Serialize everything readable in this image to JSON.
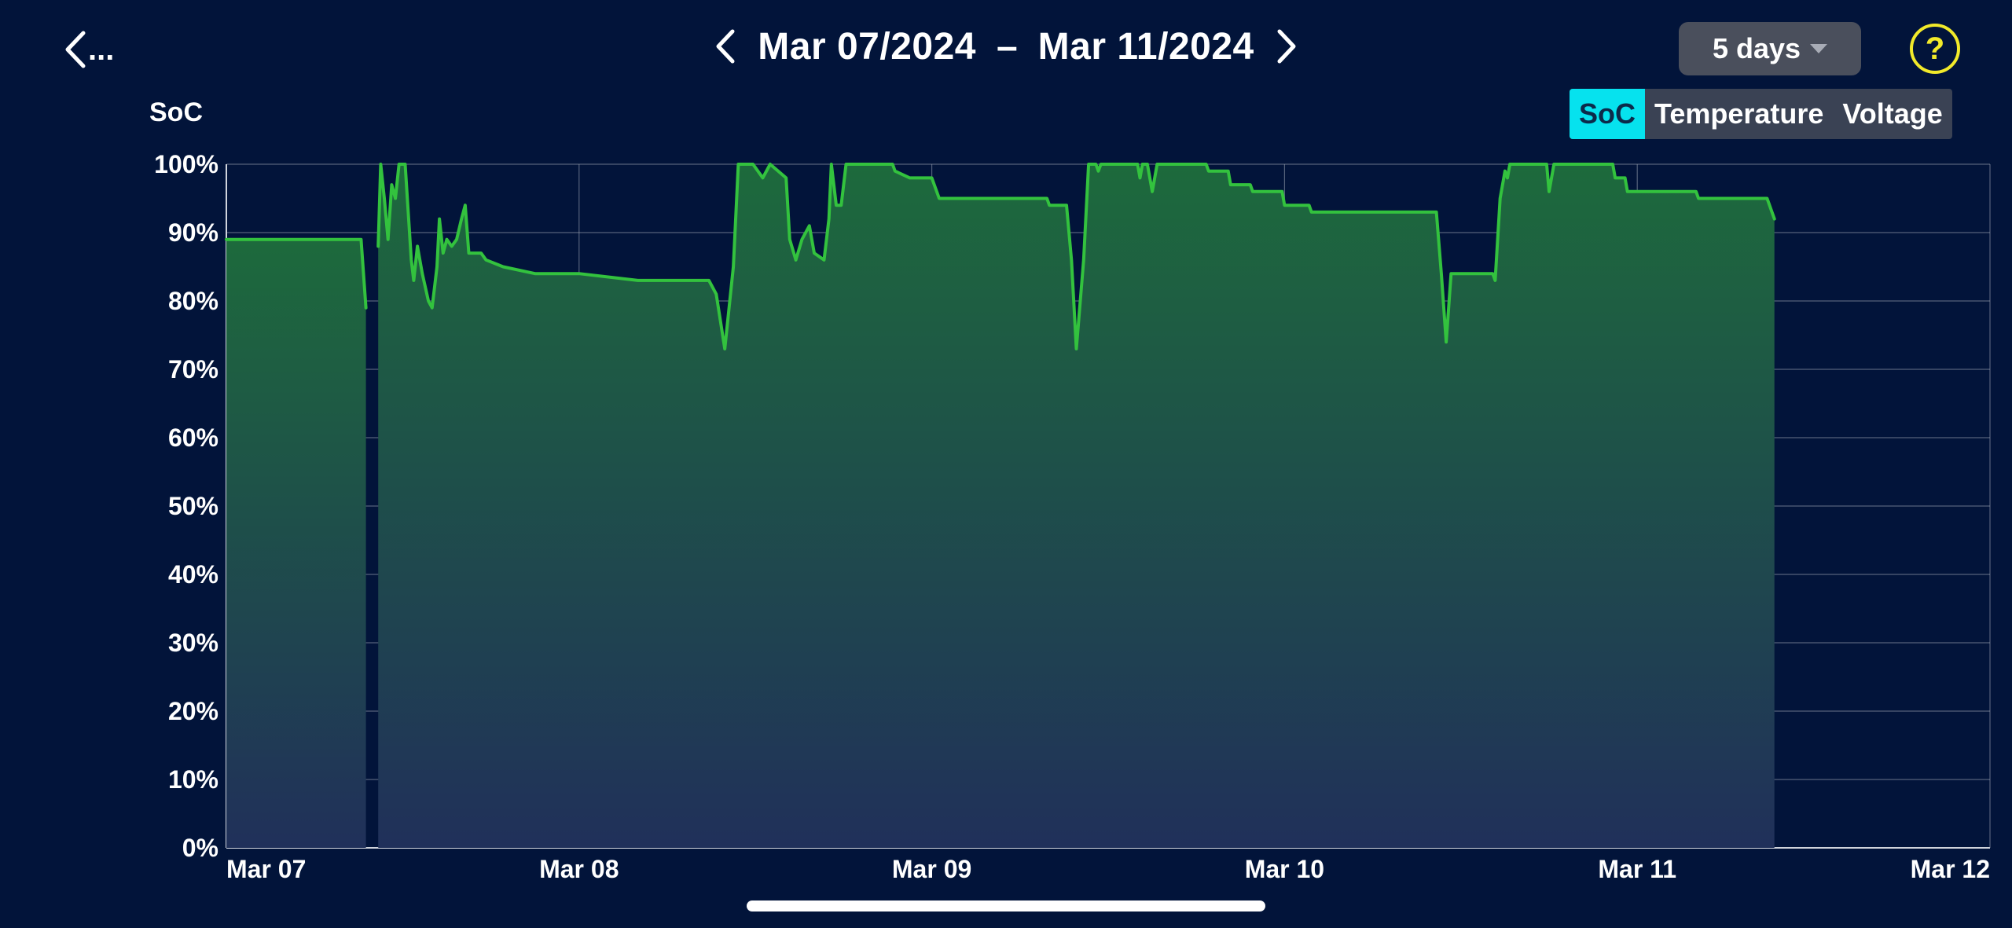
{
  "header": {
    "back_label": "...",
    "date_start": "Mar 07/2024",
    "date_separator": "–",
    "date_end": "Mar 11/2024",
    "range_selected": "5 days",
    "help_label": "?"
  },
  "metric_tabs": [
    {
      "label": "SoC",
      "active": true
    },
    {
      "label": "Temperature",
      "active": false
    },
    {
      "label": "Voltage",
      "active": false
    }
  ],
  "colors": {
    "background": "#02143a",
    "line": "#33c23e",
    "selected_tab": "#06e2ee",
    "help_accent": "#f2ea2a"
  },
  "chart_data": {
    "type": "area",
    "ylabel": "SoC",
    "ylim": [
      0,
      100
    ],
    "yticks": [
      "0%",
      "10%",
      "20%",
      "30%",
      "40%",
      "50%",
      "60%",
      "70%",
      "80%",
      "90%",
      "100%"
    ],
    "xticks": [
      "Mar 07",
      "Mar 08",
      "Mar 09",
      "Mar 10",
      "Mar 11",
      "Mar 12"
    ],
    "xlim": [
      "2024-03-07 00:00",
      "2024-03-12 00:00"
    ],
    "grid": true,
    "series": [
      {
        "segments": [
          [
            [
              "2024-03-07 00:00",
              89
            ],
            [
              "2024-03-07 09:10",
              89
            ],
            [
              "2024-03-07 09:30",
              79
            ]
          ],
          [
            [
              "2024-03-07 10:20",
              88
            ],
            [
              "2024-03-07 10:30",
              100
            ],
            [
              "2024-03-07 10:45",
              95
            ],
            [
              "2024-03-07 11:00",
              89
            ],
            [
              "2024-03-07 11:15",
              97
            ],
            [
              "2024-03-07 11:30",
              95
            ],
            [
              "2024-03-07 11:45",
              100
            ],
            [
              "2024-03-07 12:10",
              100
            ],
            [
              "2024-03-07 12:35",
              86
            ],
            [
              "2024-03-07 12:45",
              83
            ],
            [
              "2024-03-07 13:00",
              88
            ],
            [
              "2024-03-07 13:20",
              84
            ],
            [
              "2024-03-07 13:45",
              80
            ],
            [
              "2024-03-07 14:00",
              79
            ],
            [
              "2024-03-07 14:20",
              85
            ],
            [
              "2024-03-07 14:30",
              92
            ],
            [
              "2024-03-07 14:45",
              87
            ],
            [
              "2024-03-07 15:00",
              89
            ],
            [
              "2024-03-07 15:20",
              88
            ],
            [
              "2024-03-07 15:40",
              89
            ],
            [
              "2024-03-07 16:00",
              92
            ],
            [
              "2024-03-07 16:15",
              94
            ],
            [
              "2024-03-07 16:30",
              87
            ],
            [
              "2024-03-07 17:20",
              87
            ],
            [
              "2024-03-07 17:40",
              86
            ],
            [
              "2024-03-07 18:50",
              85
            ],
            [
              "2024-03-07 21:00",
              84
            ],
            [
              "2024-03-08 00:00",
              84
            ],
            [
              "2024-03-08 04:00",
              83
            ],
            [
              "2024-03-08 08:50",
              83
            ],
            [
              "2024-03-08 09:20",
              81
            ],
            [
              "2024-03-08 09:55",
              73
            ],
            [
              "2024-03-08 10:30",
              85
            ],
            [
              "2024-03-08 10:50",
              100
            ],
            [
              "2024-03-08 11:50",
              100
            ],
            [
              "2024-03-08 12:30",
              98
            ],
            [
              "2024-03-08 13:00",
              100
            ],
            [
              "2024-03-08 14:05",
              98
            ],
            [
              "2024-03-08 14:20",
              89
            ],
            [
              "2024-03-08 14:45",
              86
            ],
            [
              "2024-03-08 15:10",
              89
            ],
            [
              "2024-03-08 15:40",
              91
            ],
            [
              "2024-03-08 16:00",
              87
            ],
            [
              "2024-03-08 16:40",
              86
            ],
            [
              "2024-03-08 17:00",
              92
            ],
            [
              "2024-03-08 17:10",
              100
            ],
            [
              "2024-03-08 17:30",
              94
            ],
            [
              "2024-03-08 17:50",
              94
            ],
            [
              "2024-03-08 18:10",
              100
            ],
            [
              "2024-03-08 21:20",
              100
            ],
            [
              "2024-03-08 21:30",
              99
            ],
            [
              "2024-03-08 22:30",
              98
            ],
            [
              "2024-03-09 00:00",
              98
            ],
            [
              "2024-03-09 00:30",
              95
            ],
            [
              "2024-03-09 07:50",
              95
            ],
            [
              "2024-03-09 08:00",
              94
            ],
            [
              "2024-03-09 09:10",
              94
            ],
            [
              "2024-03-09 09:30",
              86
            ],
            [
              "2024-03-09 09:50",
              73
            ],
            [
              "2024-03-09 10:20",
              86
            ],
            [
              "2024-03-09 10:40",
              100
            ],
            [
              "2024-03-09 11:10",
              100
            ],
            [
              "2024-03-09 11:20",
              99
            ],
            [
              "2024-03-09 11:30",
              100
            ],
            [
              "2024-03-09 14:00",
              100
            ],
            [
              "2024-03-09 14:10",
              98
            ],
            [
              "2024-03-09 14:20",
              100
            ],
            [
              "2024-03-09 14:40",
              100
            ],
            [
              "2024-03-09 15:00",
              96
            ],
            [
              "2024-03-09 15:20",
              100
            ],
            [
              "2024-03-09 18:40",
              100
            ],
            [
              "2024-03-09 18:50",
              99
            ],
            [
              "2024-03-09 20:10",
              99
            ],
            [
              "2024-03-09 20:20",
              97
            ],
            [
              "2024-03-09 21:40",
              97
            ],
            [
              "2024-03-09 21:50",
              96
            ],
            [
              "2024-03-09 23:50",
              96
            ],
            [
              "2024-03-10 00:00",
              94
            ],
            [
              "2024-03-10 01:40",
              94
            ],
            [
              "2024-03-10 01:50",
              93
            ],
            [
              "2024-03-10 10:20",
              93
            ],
            [
              "2024-03-10 10:40",
              84
            ],
            [
              "2024-03-10 11:00",
              74
            ],
            [
              "2024-03-10 11:20",
              84
            ],
            [
              "2024-03-10 14:10",
              84
            ],
            [
              "2024-03-10 14:20",
              83
            ],
            [
              "2024-03-10 14:40",
              95
            ],
            [
              "2024-03-10 15:00",
              99
            ],
            [
              "2024-03-10 15:10",
              98
            ],
            [
              "2024-03-10 15:20",
              100
            ],
            [
              "2024-03-10 17:50",
              100
            ],
            [
              "2024-03-10 18:00",
              96
            ],
            [
              "2024-03-10 18:20",
              100
            ],
            [
              "2024-03-10 22:20",
              100
            ],
            [
              "2024-03-10 22:30",
              98
            ],
            [
              "2024-03-10 23:10",
              98
            ],
            [
              "2024-03-10 23:20",
              96
            ],
            [
              "2024-03-11 04:00",
              96
            ],
            [
              "2024-03-11 04:10",
              95
            ],
            [
              "2024-03-11 08:50",
              95
            ],
            [
              "2024-03-11 09:10",
              93
            ],
            [
              "2024-03-11 09:20",
              92
            ]
          ]
        ]
      }
    ]
  }
}
